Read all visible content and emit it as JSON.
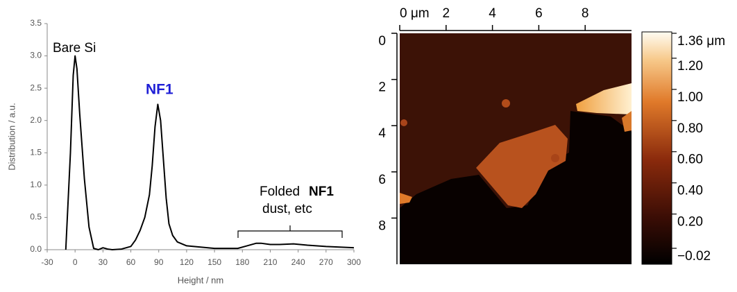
{
  "chart_data": [
    {
      "type": "line",
      "x_label": "Height / nm",
      "y_label": "Distribution / a.u.",
      "x": [
        -10,
        -5,
        -2,
        0,
        2,
        5,
        10,
        15,
        20,
        25,
        30,
        35,
        40,
        50,
        60,
        65,
        70,
        75,
        80,
        83,
        86,
        89,
        92,
        95,
        98,
        101,
        105,
        110,
        120,
        135,
        150,
        175,
        185,
        195,
        200,
        210,
        220,
        235,
        250,
        270,
        300
      ],
      "values": [
        0,
        1.5,
        2.7,
        3.0,
        2.8,
        2.1,
        1.1,
        0.35,
        0.02,
        0.0,
        0.03,
        0.01,
        0.0,
        0.01,
        0.05,
        0.15,
        0.3,
        0.5,
        0.85,
        1.3,
        1.9,
        2.25,
        2.0,
        1.4,
        0.8,
        0.4,
        0.22,
        0.12,
        0.06,
        0.04,
        0.02,
        0.02,
        0.06,
        0.1,
        0.1,
        0.08,
        0.08,
        0.09,
        0.07,
        0.05,
        0.03
      ],
      "color": "#000000",
      "xlim": [
        -30,
        300
      ],
      "ylim": [
        0,
        3.5
      ],
      "xticks": [
        -30,
        0,
        30,
        60,
        90,
        120,
        150,
        180,
        210,
        240,
        270,
        300
      ],
      "yticks": [
        {
          "value": 0,
          "label": "0.0"
        },
        {
          "value": 0.5,
          "label": "0.5"
        },
        {
          "value": 1,
          "label": "1.0"
        },
        {
          "value": 1.5,
          "label": "1.5"
        },
        {
          "value": 2,
          "label": "2.0"
        },
        {
          "value": 2.5,
          "label": "2.5"
        },
        {
          "value": 3,
          "label": "3.0"
        },
        {
          "value": 3.5,
          "label": "3.5"
        }
      ],
      "annotations": [
        "Bare Si",
        "NF1",
        "Folded",
        "NF1",
        "dust, etc"
      ]
    },
    {
      "type": "image",
      "xlim": [
        0,
        10
      ],
      "ylim": [
        0,
        10
      ],
      "xticks": [
        {
          "value": 0,
          "label": "0 μm"
        },
        2,
        4,
        6,
        8
      ],
      "yticks": [
        0,
        2,
        4,
        6,
        8
      ],
      "colorbar": {
        "clim": [
          -0.02,
          1.36
        ],
        "ticks": [
          {
            "value": 1.36,
            "label": "1.36 μm"
          },
          {
            "value": 1.2,
            "label": "1.20"
          },
          {
            "value": 1,
            "label": "1.00"
          },
          {
            "value": 0.8,
            "label": "0.80"
          },
          {
            "value": 0.6,
            "label": "0.60"
          },
          {
            "value": 0.4,
            "label": "0.40"
          },
          {
            "value": 0.2,
            "label": "0.20"
          },
          {
            "value": -0.02,
            "label": "−0.02"
          }
        ]
      }
    }
  ]
}
